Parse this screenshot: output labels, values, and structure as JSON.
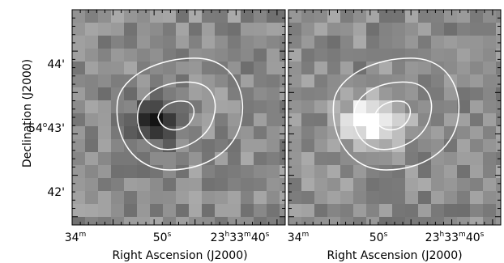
{
  "figure": {
    "ylabel": "Declination (J2000)",
    "xlabel": "Right Ascension (J2000)",
    "yticks": [
      {
        "deg": "",
        "min": "44",
        "sym": "'"
      },
      {
        "deg": "54",
        "degsym": "o",
        "min": "43",
        "sym": "'"
      },
      {
        "deg": "",
        "min": "42",
        "sym": "'"
      }
    ],
    "xticks": [
      {
        "pre": "34",
        "sup": "m"
      },
      {
        "pre": "50",
        "sup": "s"
      },
      {
        "h": "23",
        "hsup": "h",
        "m": "33",
        "msup": "m",
        "s": "40",
        "ssup": "s"
      }
    ],
    "panels": [
      {
        "name": "left-panel",
        "description_color": "grayscale with dark central source"
      },
      {
        "name": "right-panel",
        "description_color": "grayscale with bright central source"
      }
    ],
    "contour_color": "#ffffff"
  }
}
